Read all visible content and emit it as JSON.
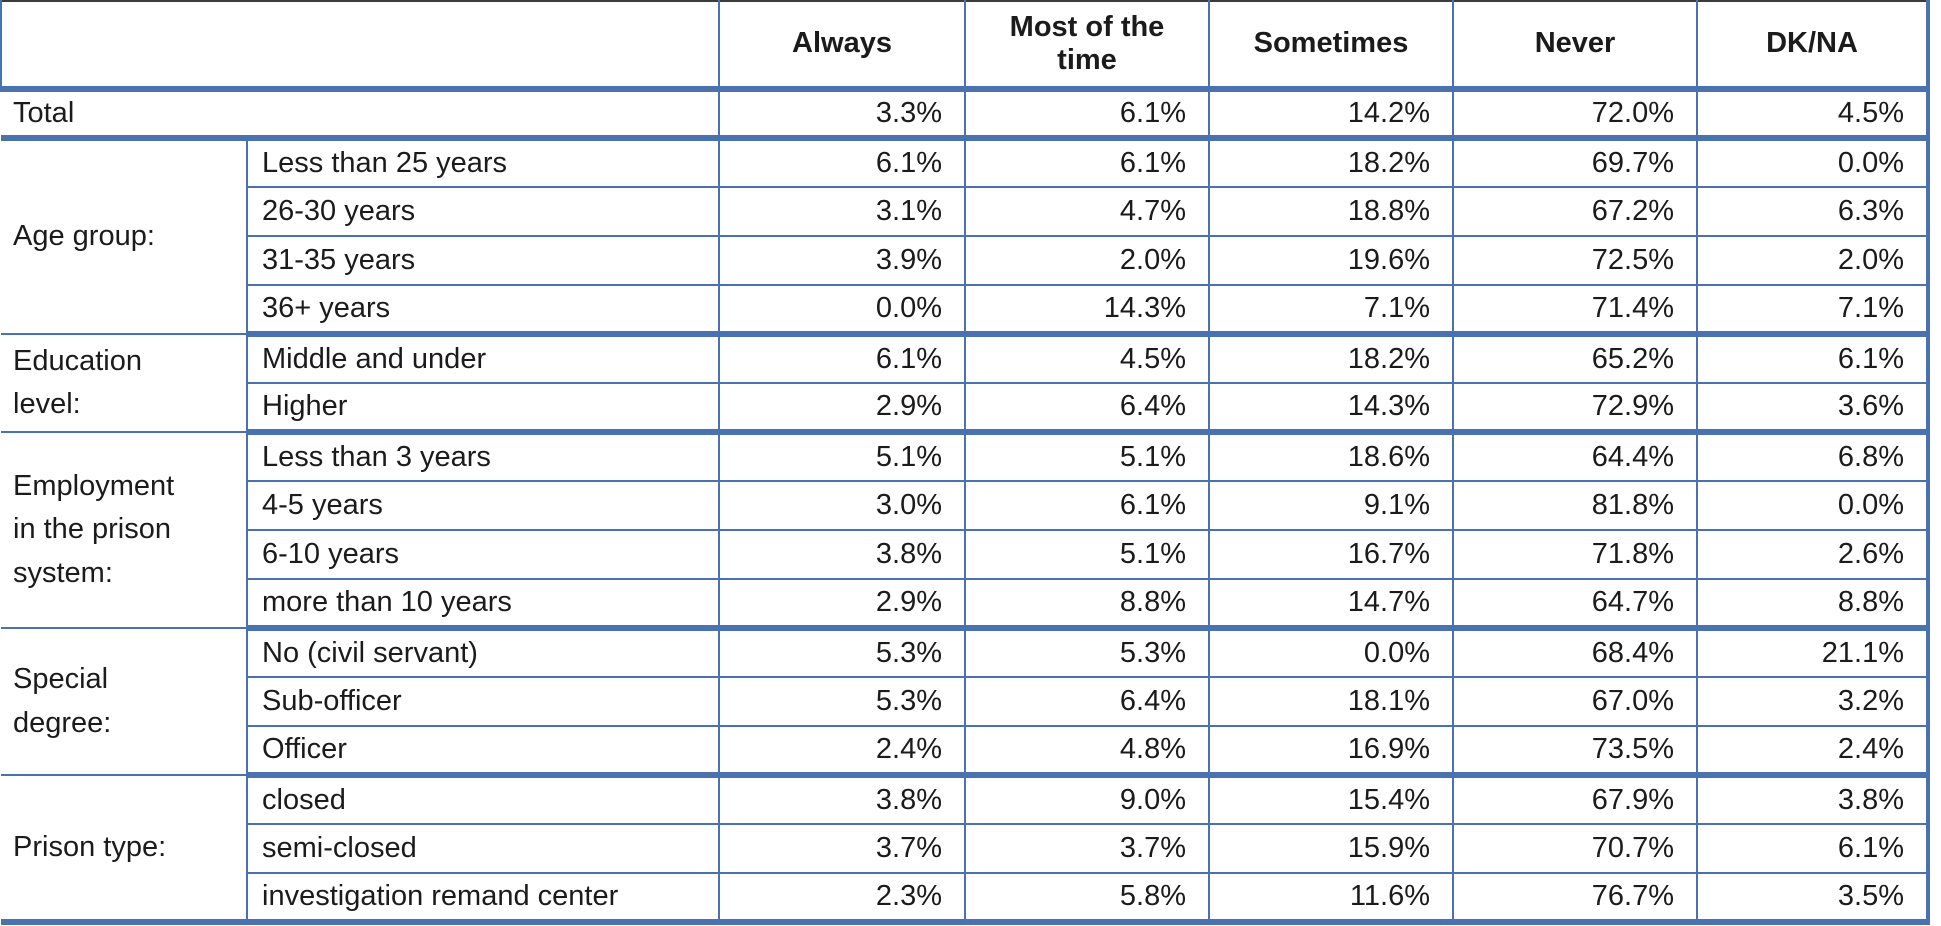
{
  "style": {
    "border_blue": "#4A72B0",
    "top_rule": "#3C3C3C",
    "text_color": "#1B1B1B",
    "background": "#FFFFFF"
  },
  "chart_data": {
    "type": "table",
    "title": "",
    "column_headers": [
      "Always",
      "Most of the time",
      "Sometimes",
      "Never",
      "DK/NA"
    ],
    "row_groups": [
      {
        "group_label": "",
        "rows": [
          {
            "label": "Total",
            "values": [
              "3.3%",
              "6.1%",
              "14.2%",
              "72.0%",
              "4.5%"
            ]
          }
        ]
      },
      {
        "group_label": "Age group:",
        "rows": [
          {
            "label": "Less than 25 years",
            "values": [
              "6.1%",
              "6.1%",
              "18.2%",
              "69.7%",
              "0.0%"
            ]
          },
          {
            "label": "26-30 years",
            "values": [
              "3.1%",
              "4.7%",
              "18.8%",
              "67.2%",
              "6.3%"
            ]
          },
          {
            "label": "31-35 years",
            "values": [
              "3.9%",
              "2.0%",
              "19.6%",
              "72.5%",
              "2.0%"
            ]
          },
          {
            "label": "36+ years",
            "values": [
              "0.0%",
              "14.3%",
              "7.1%",
              "71.4%",
              "7.1%"
            ]
          }
        ]
      },
      {
        "group_label": "Education level:",
        "rows": [
          {
            "label": "Middle and under",
            "values": [
              "6.1%",
              "4.5%",
              "18.2%",
              "65.2%",
              "6.1%"
            ]
          },
          {
            "label": "Higher",
            "values": [
              "2.9%",
              "6.4%",
              "14.3%",
              "72.9%",
              "3.6%"
            ]
          }
        ]
      },
      {
        "group_label": "Employment in the prison system:",
        "rows": [
          {
            "label": "Less than 3 years",
            "values": [
              "5.1%",
              "5.1%",
              "18.6%",
              "64.4%",
              "6.8%"
            ]
          },
          {
            "label": "4-5 years",
            "values": [
              "3.0%",
              "6.1%",
              "9.1%",
              "81.8%",
              "0.0%"
            ]
          },
          {
            "label": "6-10 years",
            "values": [
              "3.8%",
              "5.1%",
              "16.7%",
              "71.8%",
              "2.6%"
            ]
          },
          {
            "label": "more than 10 years",
            "values": [
              "2.9%",
              "8.8%",
              "14.7%",
              "64.7%",
              "8.8%"
            ]
          }
        ]
      },
      {
        "group_label": "Special degree:",
        "rows": [
          {
            "label": "No (civil servant)",
            "values": [
              "5.3%",
              "5.3%",
              "0.0%",
              "68.4%",
              "21.1%"
            ]
          },
          {
            "label": "Sub-officer",
            "values": [
              "5.3%",
              "6.4%",
              "18.1%",
              "67.0%",
              "3.2%"
            ]
          },
          {
            "label": "Officer",
            "values": [
              "2.4%",
              "4.8%",
              "16.9%",
              "73.5%",
              "2.4%"
            ]
          }
        ]
      },
      {
        "group_label": "Prison type:",
        "rows": [
          {
            "label": "closed",
            "values": [
              "3.8%",
              "9.0%",
              "15.4%",
              "67.9%",
              "3.8%"
            ]
          },
          {
            "label": "semi-closed",
            "values": [
              "3.7%",
              "3.7%",
              "15.9%",
              "70.7%",
              "6.1%"
            ]
          },
          {
            "label": "investigation remand center",
            "values": [
              "2.3%",
              "5.8%",
              "11.6%",
              "76.7%",
              "3.5%"
            ]
          }
        ]
      }
    ]
  }
}
